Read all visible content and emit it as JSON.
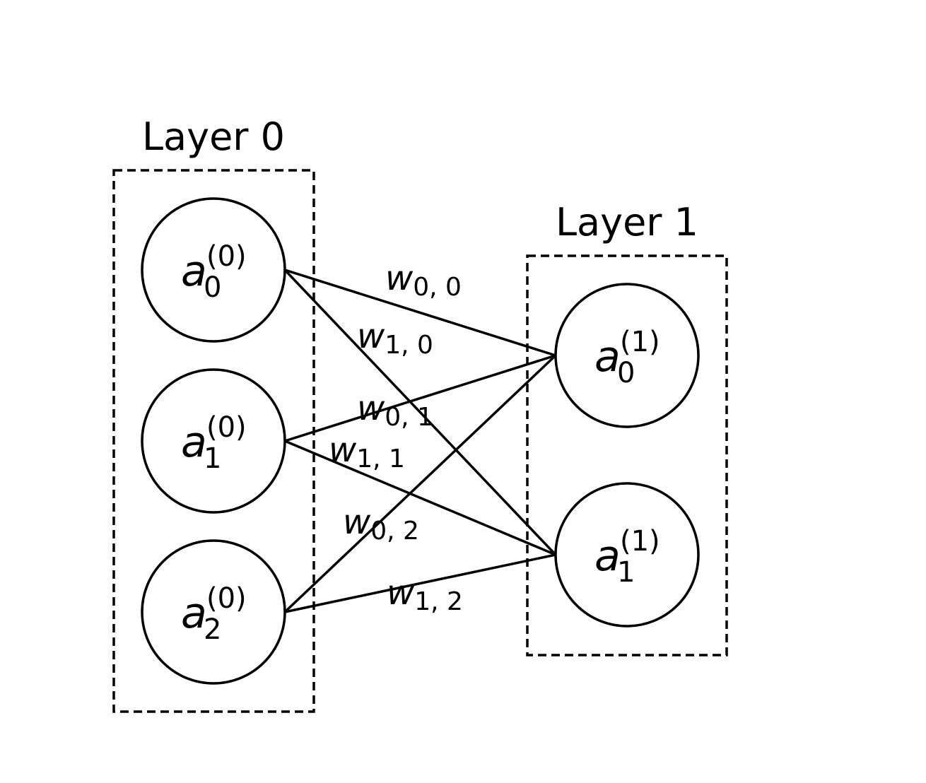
{
  "layers": [
    {
      "title": "Layer 0",
      "neurons": [
        {
          "base": "a",
          "sub": "0",
          "sup": "(0)"
        },
        {
          "base": "a",
          "sub": "1",
          "sup": "(0)"
        },
        {
          "base": "a",
          "sub": "2",
          "sup": "(0)"
        }
      ]
    },
    {
      "title": "Layer 1",
      "neurons": [
        {
          "base": "a",
          "sub": "0",
          "sup": "(1)"
        },
        {
          "base": "a",
          "sub": "1",
          "sup": "(1)"
        }
      ]
    }
  ],
  "weights": [
    {
      "from": 0,
      "to": 0,
      "base": "w",
      "sub": "0, 0"
    },
    {
      "from": 0,
      "to": 1,
      "base": "w",
      "sub": "1, 0"
    },
    {
      "from": 1,
      "to": 0,
      "base": "w",
      "sub": "0, 1"
    },
    {
      "from": 1,
      "to": 1,
      "base": "w",
      "sub": "1, 1"
    },
    {
      "from": 2,
      "to": 0,
      "base": "w",
      "sub": "0, 2"
    },
    {
      "from": 2,
      "to": 1,
      "base": "w",
      "sub": "1, 2"
    }
  ]
}
